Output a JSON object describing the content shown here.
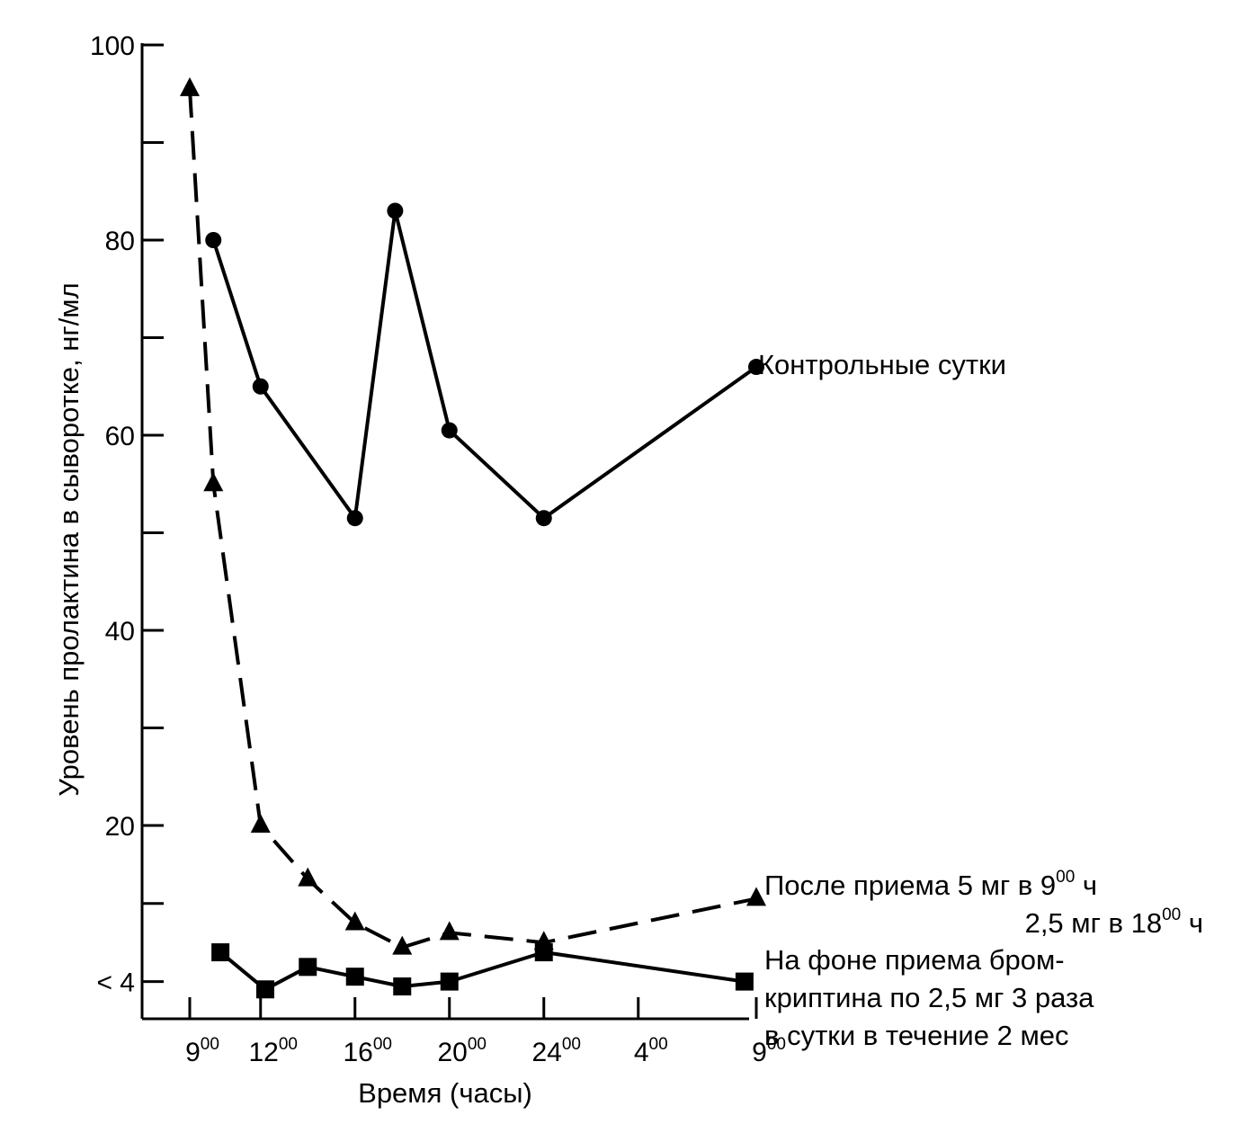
{
  "chart_data": {
    "type": "line",
    "xlabel": "Время (часы)",
    "ylabel": "Уровень пролактина в сыворотке, нг/мл",
    "ylim": [
      0,
      100
    ],
    "y_ticks": [
      {
        "value": 100,
        "label": "100"
      },
      {
        "value": 80,
        "label": "80"
      },
      {
        "value": 60,
        "label": "60"
      },
      {
        "value": 40,
        "label": "40"
      },
      {
        "value": 20,
        "label": "20"
      },
      {
        "value": 4,
        "label": "< 4"
      }
    ],
    "y_minor_ticks": [
      90,
      70,
      50,
      30,
      12
    ],
    "x_ticks": [
      {
        "hour": 9,
        "base": "9",
        "sup": "00"
      },
      {
        "hour": 12,
        "base": "12",
        "sup": "00"
      },
      {
        "hour": 16,
        "base": "16",
        "sup": "00"
      },
      {
        "hour": 20,
        "base": "20",
        "sup": "00"
      },
      {
        "hour": 24,
        "base": "24",
        "sup": "00"
      },
      {
        "hour": 28,
        "base": "4",
        "sup": "00"
      },
      {
        "hour": 33,
        "base": "9",
        "sup": "00"
      }
    ],
    "grid": false,
    "legend": "none",
    "series": [
      {
        "marker": "circle",
        "style": "solid",
        "label": "Контрольные сутки",
        "points": [
          {
            "x": 10,
            "y": 80
          },
          {
            "x": 12,
            "y": 65
          },
          {
            "x": 16,
            "y": 51.5
          },
          {
            "x": 17.7,
            "y": 83
          },
          {
            "x": 20,
            "y": 60.5
          },
          {
            "x": 24,
            "y": 51.5
          },
          {
            "x": 33,
            "y": 67
          }
        ]
      },
      {
        "marker": "triangle",
        "style": "dashed",
        "label_lines": [
          [
            {
              "t": "После приема 5 мг в 9"
            },
            {
              "t": "00",
              "sup": true
            },
            {
              "t": " ч"
            }
          ],
          [
            {
              "t": "2,5 мг в 18"
            },
            {
              "t": "00",
              "sup": true
            },
            {
              "t": " ч"
            }
          ]
        ],
        "points": [
          {
            "x": 9,
            "y": 95.5
          },
          {
            "x": 10,
            "y": 55
          },
          {
            "x": 12,
            "y": 20
          },
          {
            "x": 14,
            "y": 14.5
          },
          {
            "x": 16,
            "y": 10
          },
          {
            "x": 18,
            "y": 7.5
          },
          {
            "x": 20,
            "y": 9
          },
          {
            "x": 24,
            "y": 8
          },
          {
            "x": 33,
            "y": 12.5
          }
        ]
      },
      {
        "marker": "square",
        "style": "solid",
        "label_lines": [
          [
            {
              "t": "На фоне приема бром-"
            }
          ],
          [
            {
              "t": "криптина по 2,5 мг 3 раза"
            }
          ],
          [
            {
              "t": "в сутки в течение 2 мес"
            }
          ]
        ],
        "points": [
          {
            "x": 10.3,
            "y": 7
          },
          {
            "x": 12.2,
            "y": 3.2
          },
          {
            "x": 14,
            "y": 5.5
          },
          {
            "x": 16,
            "y": 4.5
          },
          {
            "x": 18,
            "y": 3.5
          },
          {
            "x": 20,
            "y": 4
          },
          {
            "x": 24,
            "y": 7
          },
          {
            "x": 32.5,
            "y": 4
          }
        ]
      }
    ]
  }
}
